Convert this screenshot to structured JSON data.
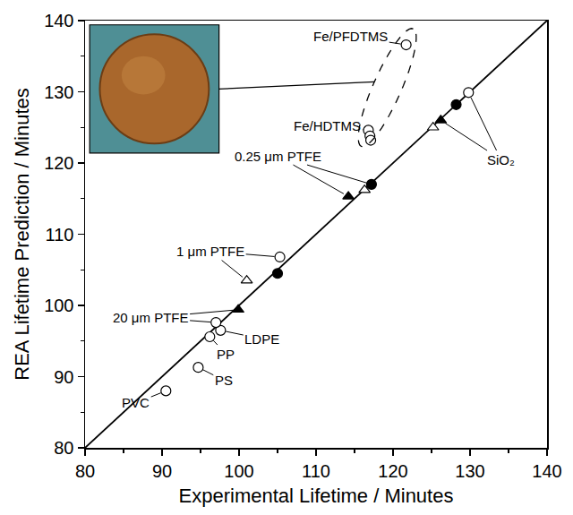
{
  "chart_data": {
    "type": "scatter",
    "xlabel": "Experimental Lifetime / Minutes",
    "ylabel": "REA Lifetime Prediction / Minutes",
    "xlim": [
      80,
      140
    ],
    "ylim": [
      80,
      140
    ],
    "xticks": [
      80,
      90,
      100,
      110,
      120,
      130,
      140
    ],
    "yticks": [
      80,
      90,
      100,
      110,
      120,
      130,
      140
    ],
    "grid": false,
    "series": [
      {
        "type": "line",
        "color": "#000000",
        "line_style": "solid",
        "x": [
          80,
          140
        ],
        "values": [
          80,
          140
        ]
      },
      {
        "type": "scatter",
        "marker": "circle-open",
        "color": "#000000",
        "x": [
          90.5,
          94.7,
          96.2,
          97.6,
          97,
          105.3,
          116.8,
          117,
          117.1,
          121.7,
          129.8
        ],
        "values": [
          88,
          91.3,
          95.6,
          96.5,
          97.6,
          106.8,
          124.6,
          123.8,
          123.2,
          136.6,
          129.9
        ]
      },
      {
        "type": "scatter",
        "marker": "circle",
        "color": "#000000",
        "x": [
          105,
          117.2,
          128.2
        ],
        "values": [
          104.5,
          117,
          128.2
        ]
      },
      {
        "type": "scatter",
        "marker": "triangle-up-open",
        "color": "#000000",
        "x": [
          101,
          116.3,
          125.2
        ],
        "values": [
          103.5,
          116.2,
          125
        ]
      },
      {
        "type": "scatter",
        "marker": "triangle-up",
        "color": "#000000",
        "x": [
          99.9,
          114.2,
          126.2
        ],
        "values": [
          99.4,
          115.3,
          126
        ]
      }
    ],
    "annotations": [
      {
        "text": "PVC",
        "points": [
          [
            90.5,
            88
          ]
        ]
      },
      {
        "text": "PS",
        "points": [
          [
            94.7,
            91.3
          ]
        ]
      },
      {
        "text": "PP",
        "points": [
          [
            96.2,
            95.6
          ]
        ]
      },
      {
        "text": "LDPE",
        "points": [
          [
            97.6,
            96.5
          ]
        ]
      },
      {
        "text": "20 μm PTFE",
        "points": [
          [
            97,
            97.6
          ],
          [
            99.9,
            99.4
          ]
        ]
      },
      {
        "text": "1 μm PTFE",
        "points": [
          [
            101,
            103.5
          ],
          [
            105.3,
            106.8
          ]
        ]
      },
      {
        "text": "0.25 μm PTFE",
        "points": [
          [
            114.2,
            115.3
          ],
          [
            117.2,
            117
          ]
        ]
      },
      {
        "text": "Fe/HDTMS",
        "points": [
          [
            116.8,
            124.6
          ]
        ]
      },
      {
        "text": "Fe/PFDTMS",
        "points": [
          [
            121.7,
            136.6
          ]
        ]
      },
      {
        "text": "SiO₂",
        "points": [
          [
            126.2,
            126
          ],
          [
            129.8,
            129.9
          ]
        ]
      }
    ]
  }
}
